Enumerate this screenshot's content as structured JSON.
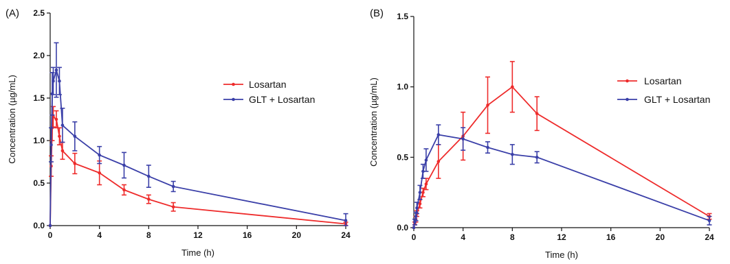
{
  "colors": {
    "losartan": "#ee2b2b",
    "glt": "#3a3fa8",
    "axis": "#111111"
  },
  "chart_data": [
    {
      "panel_label": "(A)",
      "type": "line",
      "xlabel": "Time (h)",
      "ylabel": "Concentration (µg/mL)",
      "xlim": [
        0,
        24
      ],
      "ylim": [
        0,
        2.5
      ],
      "xticks": [
        0,
        4,
        8,
        12,
        16,
        20,
        24
      ],
      "yticks": [
        0.0,
        0.5,
        1.0,
        1.5,
        2.0,
        2.5
      ],
      "ytick_labels": [
        "0.0",
        "0.5",
        "1.0",
        "1.5",
        "2.0",
        "2.5"
      ],
      "grid": false,
      "legend_position": "right",
      "series": [
        {
          "name": "Losartan",
          "color": "#ee2b2b",
          "x": [
            0,
            0.083,
            0.167,
            0.25,
            0.5,
            0.75,
            1,
            2,
            4,
            6,
            8,
            10,
            24
          ],
          "y": [
            0.0,
            0.7,
            1.15,
            1.28,
            1.25,
            1.05,
            0.88,
            0.73,
            0.62,
            0.42,
            0.31,
            0.22,
            0.02
          ],
          "err": [
            0.0,
            0.12,
            0.15,
            0.12,
            0.1,
            0.1,
            0.1,
            0.12,
            0.14,
            0.06,
            0.05,
            0.05,
            0.02
          ]
        },
        {
          "name": "GLT + Losartan",
          "color": "#3a3fa8",
          "x": [
            0,
            0.083,
            0.167,
            0.25,
            0.5,
            0.75,
            1,
            2,
            4,
            6,
            8,
            10,
            24
          ],
          "y": [
            0.0,
            0.95,
            1.55,
            1.7,
            1.83,
            1.7,
            1.18,
            1.05,
            0.83,
            0.71,
            0.58,
            0.46,
            0.06
          ],
          "err": [
            0.0,
            0.2,
            0.25,
            0.16,
            0.32,
            0.16,
            0.2,
            0.17,
            0.1,
            0.15,
            0.13,
            0.06,
            0.08
          ]
        }
      ]
    },
    {
      "panel_label": "(B)",
      "type": "line",
      "xlabel": "Time (h)",
      "ylabel": "Concentration (µg/mL)",
      "xlim": [
        0,
        24
      ],
      "ylim": [
        0,
        1.5
      ],
      "xticks": [
        0,
        4,
        8,
        12,
        16,
        20,
        24
      ],
      "yticks": [
        0.0,
        0.5,
        1.0,
        1.5
      ],
      "ytick_labels": [
        "0.0",
        "0.5",
        "1.0",
        "1.5"
      ],
      "grid": false,
      "legend_position": "right",
      "series": [
        {
          "name": "Losartan",
          "color": "#ee2b2b",
          "x": [
            0,
            0.083,
            0.167,
            0.25,
            0.5,
            0.75,
            1,
            2,
            4,
            6,
            8,
            10,
            24
          ],
          "y": [
            0.0,
            0.03,
            0.06,
            0.1,
            0.17,
            0.25,
            0.31,
            0.47,
            0.65,
            0.87,
            1.0,
            0.81,
            0.08
          ],
          "err": [
            0.0,
            0.01,
            0.02,
            0.02,
            0.03,
            0.03,
            0.04,
            0.12,
            0.17,
            0.2,
            0.18,
            0.12,
            0.02
          ]
        },
        {
          "name": "GLT + Losartan",
          "color": "#3a3fa8",
          "x": [
            0,
            0.083,
            0.167,
            0.25,
            0.5,
            0.75,
            1,
            2,
            4,
            6,
            8,
            10,
            24
          ],
          "y": [
            0.0,
            0.04,
            0.08,
            0.14,
            0.25,
            0.4,
            0.48,
            0.66,
            0.63,
            0.57,
            0.52,
            0.5,
            0.05
          ],
          "err": [
            0.0,
            0.02,
            0.03,
            0.04,
            0.05,
            0.05,
            0.08,
            0.07,
            0.08,
            0.04,
            0.07,
            0.04,
            0.03
          ]
        }
      ]
    }
  ]
}
